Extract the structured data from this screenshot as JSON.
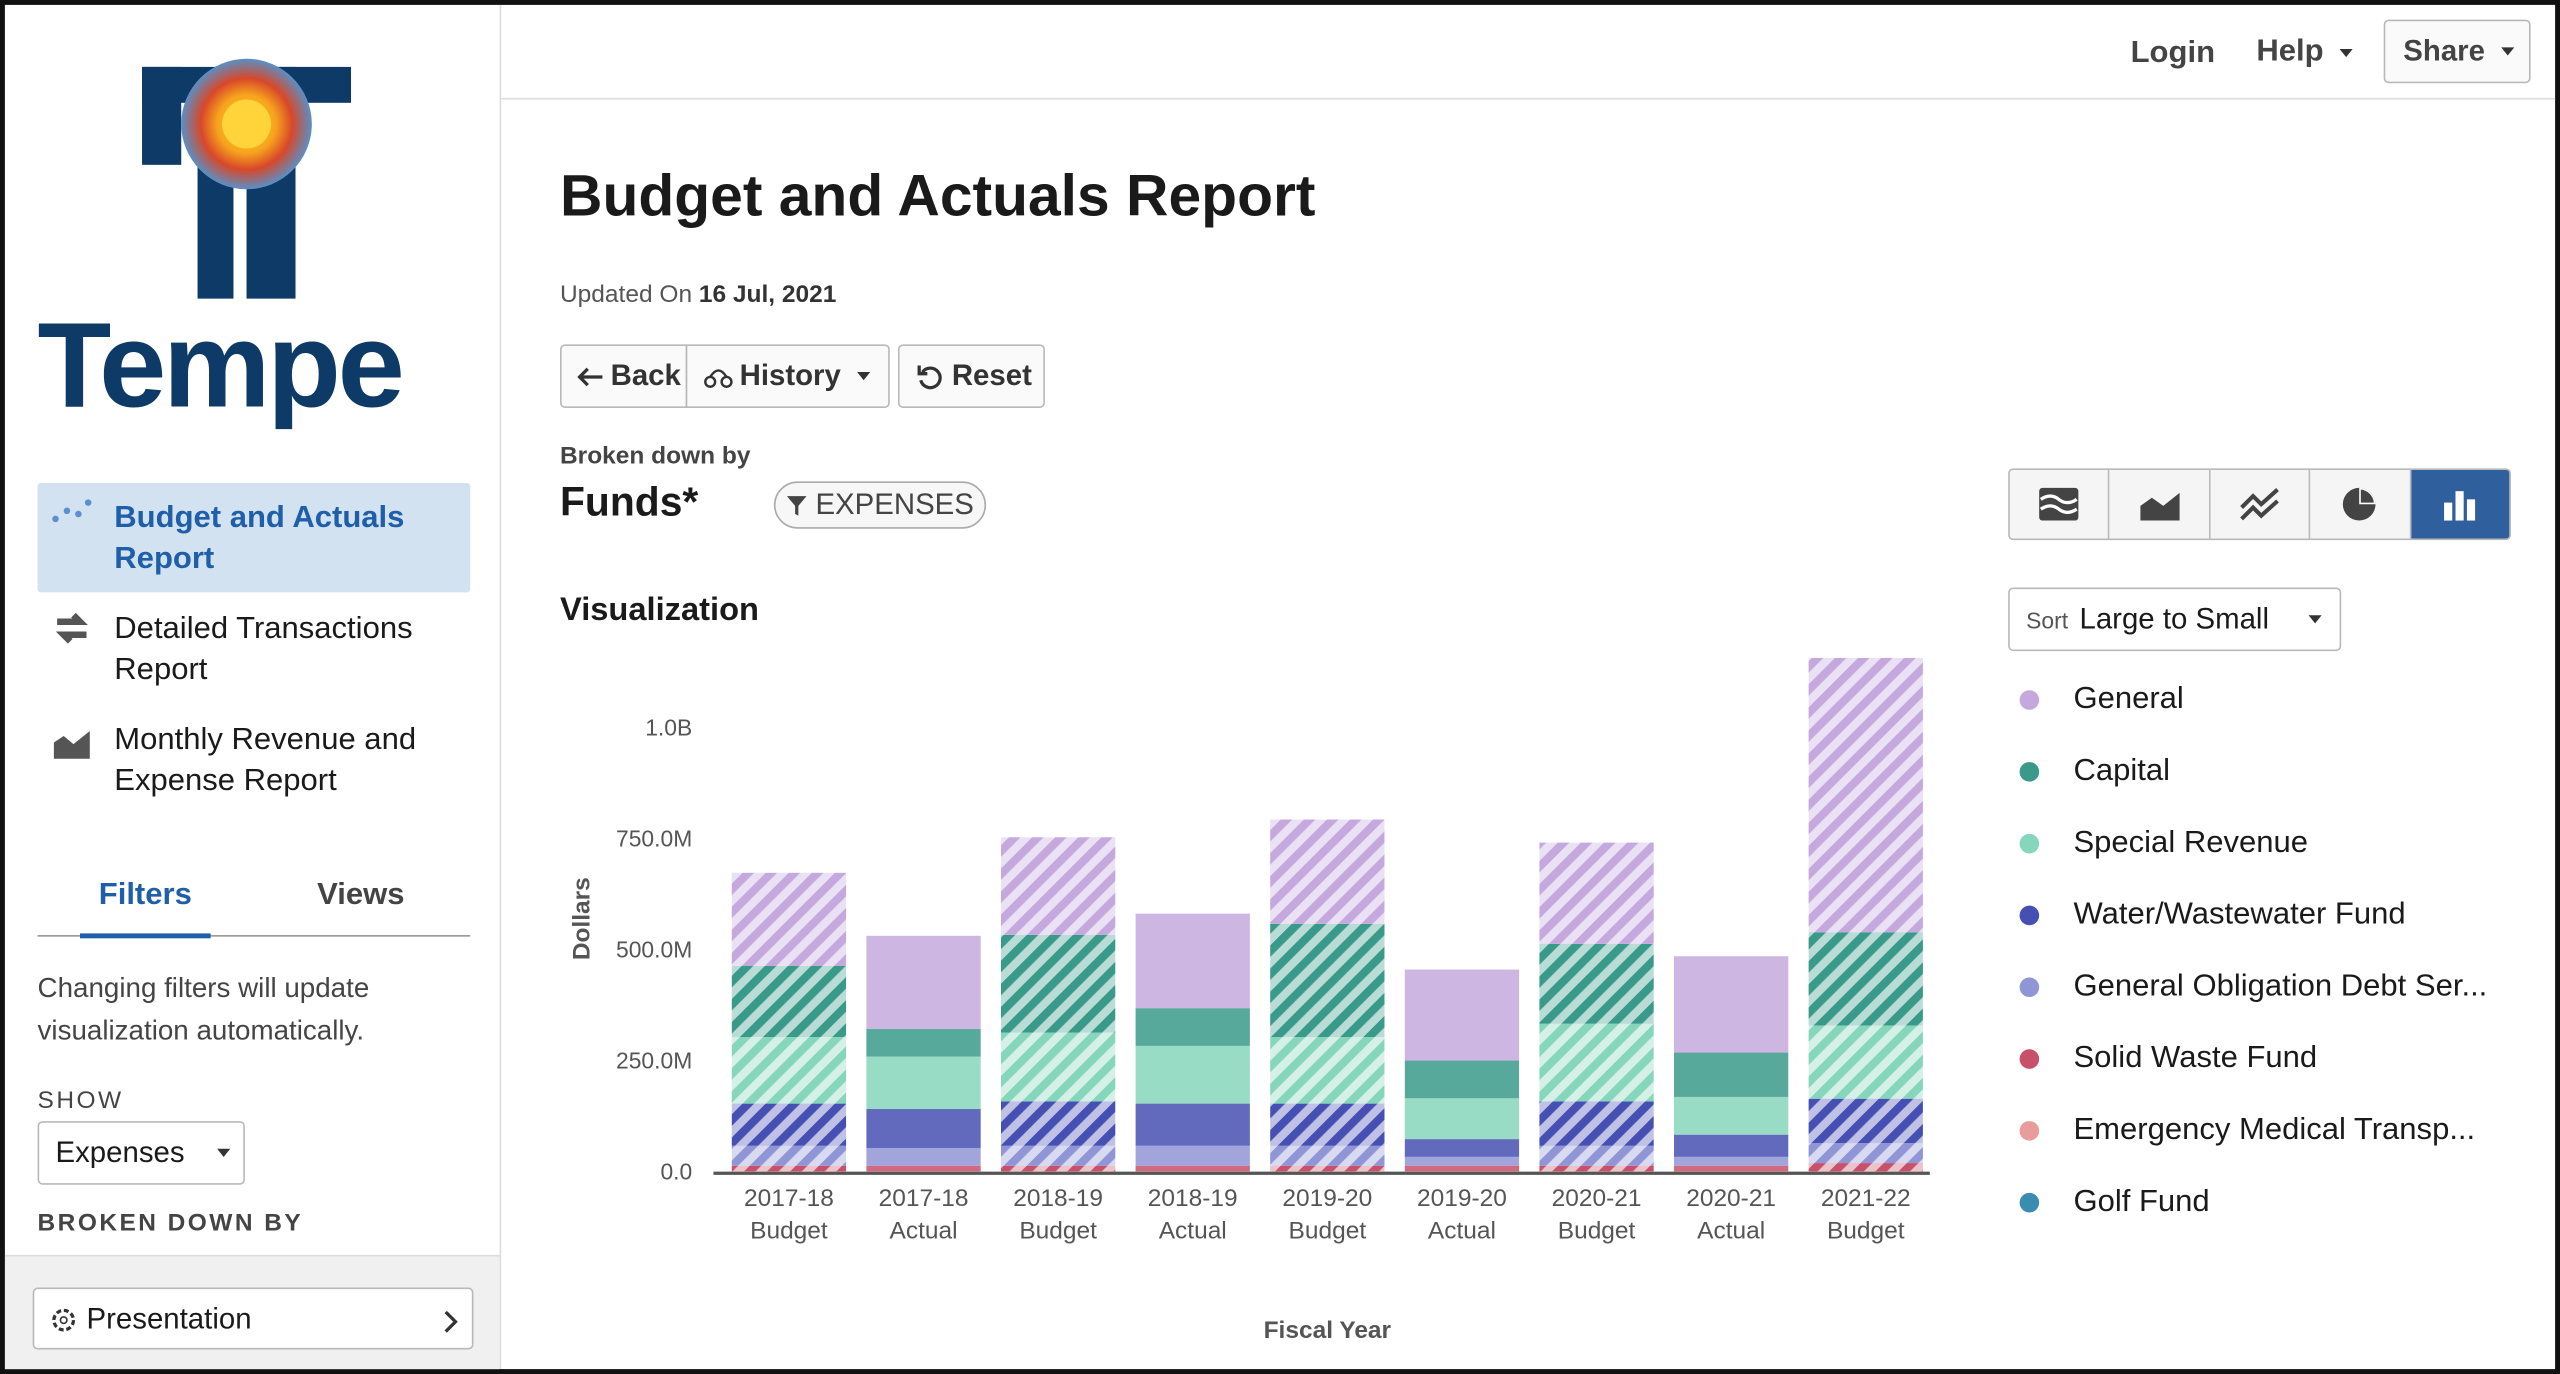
{
  "sidebar": {
    "logo_text": "Tempe",
    "nav": [
      "Budget and Actuals Report",
      "Detailed Transactions Report",
      "Monthly Revenue and Expense Report"
    ],
    "tabs": [
      "Filters",
      "Views"
    ],
    "filter_note": "Changing filters will update visualization automatically.",
    "show_label": "SHOW",
    "show_value": "Expenses",
    "broken_down_label": "BROKEN DOWN BY",
    "presentation": "Presentation"
  },
  "header": {
    "login": "Login",
    "help": "Help",
    "share": "Share"
  },
  "report": {
    "title": "Budget and Actuals Report",
    "updated_label": "Updated On",
    "updated_date": "16 Jul, 2021",
    "buttons": [
      "Back",
      "History",
      "Reset"
    ],
    "broken_down_by": "Broken down by",
    "dimension": "Funds*",
    "filter_chip": "EXPENSES",
    "section": "Visualization",
    "sort_label": "Sort",
    "sort_value": "Large to Small"
  },
  "chart_data": {
    "type": "stacked_bar",
    "x_label": "Fiscal Year",
    "y_label": "Dollars",
    "categories": [
      "2017-18 Budget",
      "2017-18 Actual",
      "2018-19 Budget",
      "2018-19 Actual",
      "2019-20 Budget",
      "2019-20 Actual",
      "2020-21 Budget",
      "2020-21 Actual",
      "2021-22 Budget"
    ],
    "hatched": [
      true,
      false,
      true,
      false,
      true,
      false,
      true,
      false,
      true
    ],
    "series": [
      {
        "name": "General",
        "color": "#c5a9de",
        "values": [
          210000000,
          210000000,
          220000000,
          213000000,
          235000000,
          205000000,
          228000000,
          217000000,
          618000000
        ]
      },
      {
        "name": "Capital",
        "color": "#3a9a8a",
        "values": [
          160000000,
          62000000,
          220000000,
          85000000,
          255000000,
          85000000,
          180000000,
          100000000,
          210000000
        ]
      },
      {
        "name": "Special Revenue",
        "color": "#86d6bb",
        "values": [
          150000000,
          118000000,
          155000000,
          130000000,
          150000000,
          92000000,
          175000000,
          85000000,
          165000000
        ]
      },
      {
        "name": "Water/Wastewater Fund",
        "color": "#4650b3",
        "values": [
          95000000,
          88000000,
          100000000,
          95000000,
          95000000,
          40000000,
          100000000,
          50000000,
          100000000
        ]
      },
      {
        "name": "General Obligation Debt Ser...",
        "color": "#9095d6",
        "values": [
          45000000,
          40000000,
          45000000,
          45000000,
          45000000,
          20000000,
          45000000,
          20000000,
          45000000
        ]
      },
      {
        "name": "Solid Waste Fund",
        "color": "#c9506a",
        "values": [
          12000000,
          12000000,
          12000000,
          12000000,
          12000000,
          12000000,
          12000000,
          12000000,
          18000000
        ]
      },
      {
        "name": "Emergency Medical Transp...",
        "color": "#e89c9c",
        "values": [
          3000000,
          3000000,
          3000000,
          3000000,
          3000000,
          3000000,
          3000000,
          3000000,
          3000000
        ]
      },
      {
        "name": "Golf Fund",
        "color": "#3a8db0",
        "values": [
          2000000,
          2000000,
          2000000,
          2000000,
          2000000,
          2000000,
          2000000,
          2000000,
          2000000
        ]
      }
    ],
    "ylim": [
      0,
      1200000000
    ],
    "yticks": [
      {
        "value": 0,
        "label": "0.0"
      },
      {
        "value": 250000000,
        "label": "250.0M"
      },
      {
        "value": 500000000,
        "label": "500.0M"
      },
      {
        "value": 750000000,
        "label": "750.0M"
      },
      {
        "value": 1000000000,
        "label": "1.0B"
      }
    ],
    "grid": false,
    "legend": "right"
  }
}
